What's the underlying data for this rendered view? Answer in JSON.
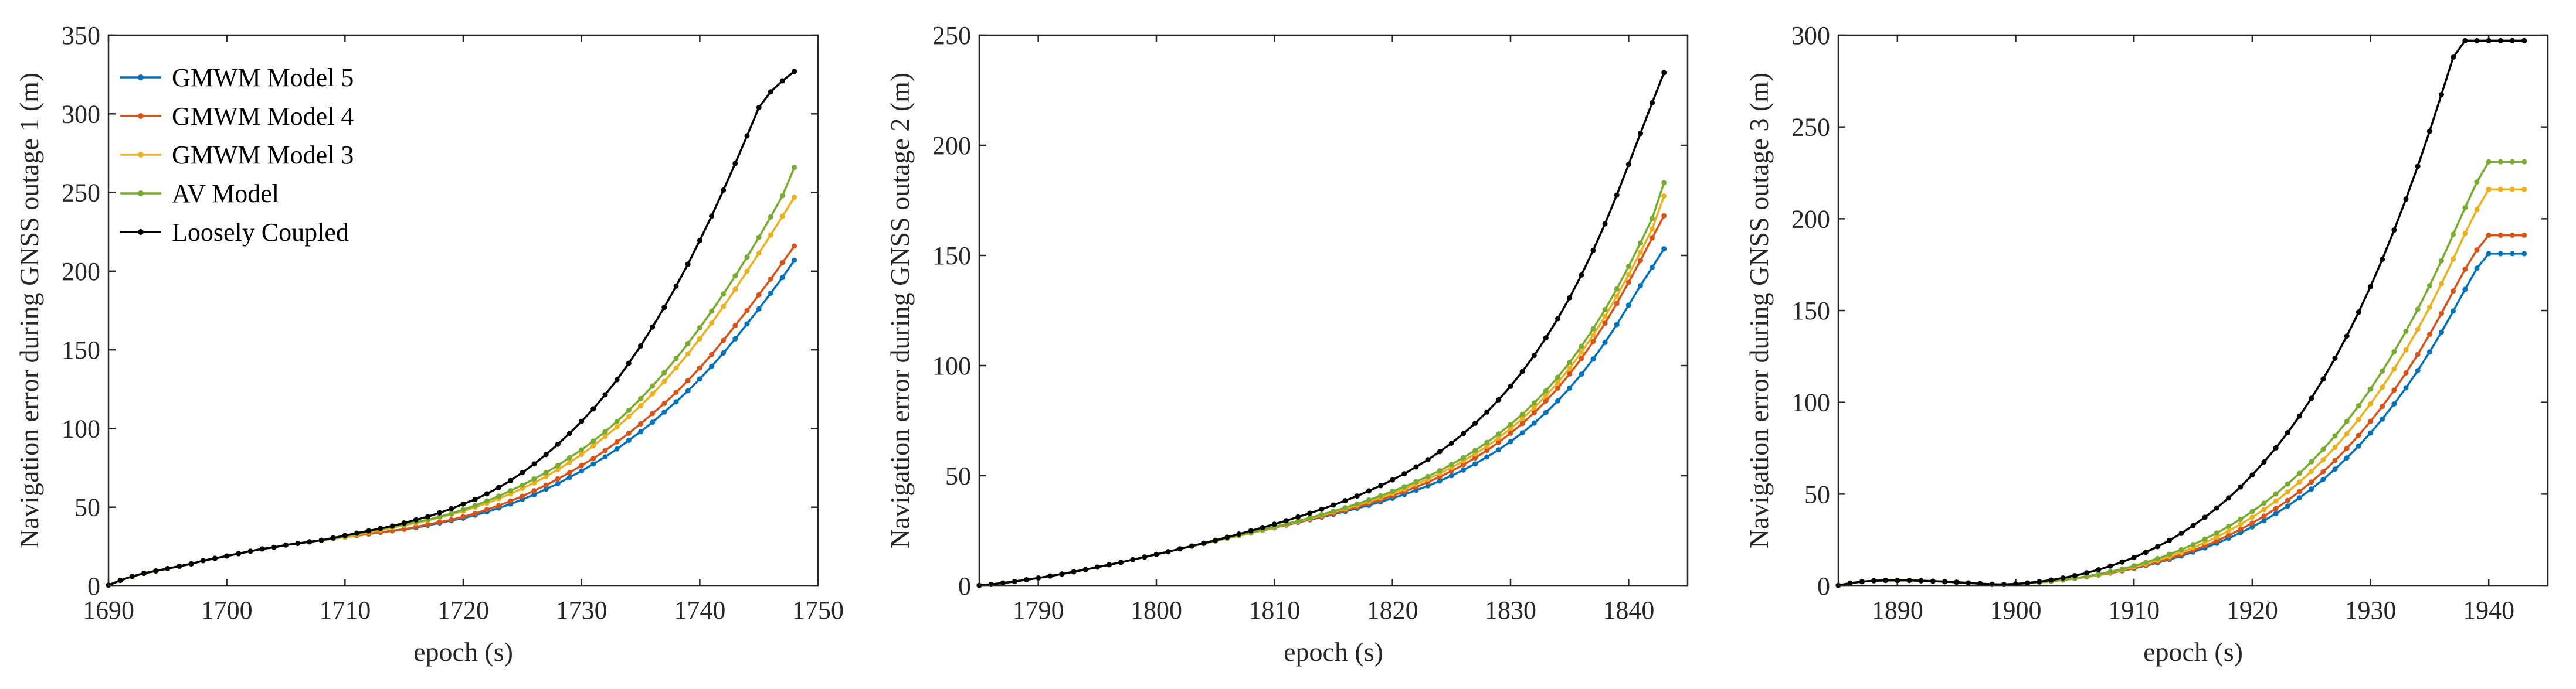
{
  "chart_data": [
    {
      "type": "line",
      "xlabel": "epoch (s)",
      "ylabel": "Navigation error during GNSS outage 1 (m)",
      "xlim": [
        1690,
        1750
      ],
      "ylim": [
        0,
        350
      ],
      "xticks": [
        1690,
        1700,
        1710,
        1720,
        1730,
        1740,
        1750
      ],
      "yticks": [
        0,
        50,
        100,
        150,
        200,
        250,
        300,
        350
      ],
      "grid": false,
      "legend_position": "top-left",
      "x_start": 1690,
      "x_step": 1,
      "series": [
        {
          "name": "GMWM Model 5",
          "color": "#0072BD",
          "values": [
            0.5,
            3.5,
            6,
            8,
            9.5,
            11,
            12.5,
            14,
            16,
            17.5,
            19,
            20.5,
            22,
            23.5,
            24.5,
            26,
            27,
            28,
            29,
            30,
            31,
            32,
            33,
            34,
            35,
            36,
            37,
            38.5,
            40,
            41.5,
            43,
            45,
            47,
            49.5,
            52,
            55,
            58,
            61.5,
            65,
            69,
            73,
            77.5,
            82,
            87,
            92.5,
            98,
            104,
            110.5,
            117,
            124,
            131.5,
            139.5,
            148,
            157,
            166.5,
            176,
            186,
            196,
            207
          ]
        },
        {
          "name": "GMWM Model 4",
          "color": "#D95319",
          "values": [
            0.5,
            3.5,
            6,
            8,
            9.5,
            11,
            12.5,
            14,
            16,
            17.5,
            19,
            20.5,
            22,
            23.5,
            24.5,
            26,
            27,
            28,
            29,
            30,
            31,
            32,
            33,
            34,
            35,
            36,
            37.5,
            39,
            40.5,
            42,
            44,
            46,
            48.5,
            51,
            54,
            57,
            60.5,
            64,
            68,
            72,
            76.5,
            81,
            86,
            91.5,
            97,
            103,
            109.5,
            116,
            123,
            130.5,
            138.5,
            147,
            156,
            165.5,
            175,
            185,
            195,
            205.5,
            216
          ]
        },
        {
          "name": "GMWM Model 3",
          "color": "#EDB120",
          "values": [
            0.5,
            3.5,
            6,
            8,
            9.5,
            11,
            12.5,
            14,
            16,
            17.5,
            19,
            20.5,
            22,
            23.5,
            24.5,
            26,
            27,
            28,
            29,
            30,
            31,
            32.5,
            34,
            35.5,
            37,
            38.5,
            40,
            41.5,
            43.5,
            45.5,
            47.5,
            50,
            52.5,
            55.5,
            58.5,
            62,
            65.5,
            69.5,
            74,
            78.5,
            83.5,
            89,
            95,
            101,
            107.5,
            114.5,
            122,
            130,
            138.5,
            147.5,
            157,
            167,
            177.5,
            188.5,
            200,
            211.5,
            223,
            235,
            247
          ]
        },
        {
          "name": "AV Model",
          "color": "#77AC30",
          "values": [
            0.5,
            3.5,
            6,
            8,
            9.5,
            11,
            12.5,
            14,
            16,
            17.5,
            19,
            20.5,
            22,
            23.5,
            24.5,
            26,
            27,
            28,
            29,
            30,
            31.5,
            33,
            34.5,
            36,
            37.5,
            39,
            40.5,
            42,
            44,
            46,
            48.5,
            51,
            54,
            57,
            60.5,
            64,
            68,
            72,
            76.5,
            81.5,
            86.5,
            92,
            98,
            104.5,
            111.5,
            119,
            127,
            135.5,
            144.5,
            154,
            164,
            174.5,
            185.5,
            197,
            209,
            221.5,
            234.5,
            248,
            266
          ]
        },
        {
          "name": "Loosely Coupled",
          "color": "#000000",
          "values": [
            0.5,
            3.5,
            6,
            8,
            9.5,
            11,
            12.5,
            14,
            16,
            17.5,
            19,
            20.5,
            22,
            23.5,
            24.5,
            26,
            27,
            28,
            29,
            30.5,
            32,
            33.5,
            35,
            36.5,
            38,
            40,
            42,
            44,
            46.5,
            49,
            52,
            55,
            58.5,
            62.5,
            67,
            72,
            77.5,
            83.5,
            90,
            97,
            104.5,
            112.5,
            121.5,
            131,
            141.5,
            152.5,
            164.5,
            177,
            190.5,
            204.5,
            219.5,
            235,
            251.5,
            268.5,
            286,
            304,
            314,
            321,
            327
          ]
        }
      ]
    },
    {
      "type": "line",
      "xlabel": "epoch (s)",
      "ylabel": "Navigation error during GNSS outage 2 (m)",
      "xlim": [
        1785,
        1845
      ],
      "ylim": [
        0,
        250
      ],
      "xticks": [
        1790,
        1800,
        1810,
        1820,
        1830,
        1840
      ],
      "yticks": [
        0,
        50,
        100,
        150,
        200,
        250
      ],
      "grid": false,
      "x_start": 1785,
      "x_step": 1,
      "series": [
        {
          "name": "GMWM Model 5",
          "color": "#0072BD",
          "values": [
            0.2,
            0.7,
            1.3,
            2,
            2.8,
            3.6,
            4.5,
            5.4,
            6.4,
            7.4,
            8.5,
            9.6,
            10.7,
            11.9,
            13.1,
            14.3,
            15.5,
            16.8,
            18,
            19.2,
            20.4,
            21.6,
            22.8,
            24,
            25.2,
            26.4,
            27.6,
            28.8,
            30,
            31.2,
            32.5,
            33.8,
            35.2,
            36.6,
            38.2,
            39.8,
            41.5,
            43.4,
            45.4,
            47.6,
            50,
            52.6,
            55.4,
            58.5,
            61.8,
            65.5,
            69.5,
            73.9,
            78.7,
            84,
            89.8,
            96.1,
            103,
            110.5,
            118.6,
            127.4,
            136.3,
            144.6,
            153
          ]
        },
        {
          "name": "GMWM Model 4",
          "color": "#D95319",
          "values": [
            0.2,
            0.7,
            1.3,
            2,
            2.8,
            3.6,
            4.5,
            5.4,
            6.4,
            7.4,
            8.5,
            9.6,
            10.7,
            11.9,
            13.1,
            14.3,
            15.5,
            16.8,
            18,
            19.2,
            20.4,
            21.6,
            22.8,
            24,
            25.2,
            26.4,
            27.6,
            28.9,
            30.2,
            31.5,
            32.9,
            34.3,
            35.8,
            37.4,
            39.1,
            40.9,
            42.8,
            44.9,
            47.1,
            49.5,
            52.1,
            55,
            58.1,
            61.5,
            65.2,
            69.3,
            73.7,
            78.6,
            83.9,
            89.8,
            96.2,
            103.2,
            110.9,
            119.2,
            128.2,
            137.8,
            147.7,
            158,
            168
          ]
        },
        {
          "name": "GMWM Model 3",
          "color": "#EDB120",
          "values": [
            0.2,
            0.7,
            1.3,
            2,
            2.8,
            3.6,
            4.5,
            5.4,
            6.4,
            7.4,
            8.5,
            9.6,
            10.7,
            11.9,
            13.1,
            14.3,
            15.5,
            16.8,
            18,
            19.2,
            20.4,
            21.6,
            22.8,
            24,
            25.3,
            26.6,
            27.9,
            29.2,
            30.6,
            32,
            33.5,
            35,
            36.6,
            38.3,
            40.1,
            42,
            44,
            46.2,
            48.5,
            51,
            53.7,
            56.7,
            59.9,
            63.4,
            67.2,
            71.4,
            75.9,
            80.9,
            86.3,
            92.3,
            98.8,
            106,
            113.8,
            122.3,
            131.5,
            141.3,
            151.5,
            162,
            177
          ]
        },
        {
          "name": "AV Model",
          "color": "#77AC30",
          "values": [
            0.2,
            0.7,
            1.3,
            2,
            2.8,
            3.6,
            4.5,
            5.4,
            6.4,
            7.4,
            8.5,
            9.6,
            10.7,
            11.9,
            13.1,
            14.3,
            15.5,
            16.8,
            18,
            19.2,
            20.4,
            21.6,
            22.9,
            24.2,
            25.5,
            26.8,
            28.1,
            29.5,
            30.9,
            32.4,
            33.9,
            35.5,
            37.2,
            39,
            40.9,
            42.9,
            45,
            47.3,
            49.7,
            52.3,
            55.1,
            58.2,
            61.5,
            65.1,
            69,
            73.3,
            77.9,
            83,
            88.6,
            94.7,
            101.4,
            108.7,
            116.7,
            125.4,
            134.8,
            145,
            155.7,
            166.8,
            183
          ]
        },
        {
          "name": "Loosely Coupled",
          "color": "#000000",
          "values": [
            0.2,
            0.7,
            1.3,
            2,
            2.8,
            3.6,
            4.5,
            5.4,
            6.4,
            7.4,
            8.5,
            9.6,
            10.7,
            11.9,
            13.1,
            14.3,
            15.5,
            16.8,
            18.1,
            19.4,
            20.7,
            22.1,
            23.5,
            25,
            26.5,
            28,
            29.6,
            31.3,
            33,
            34.8,
            36.7,
            38.7,
            40.8,
            43.1,
            45.5,
            48.1,
            50.9,
            54,
            57.3,
            60.9,
            64.8,
            69.1,
            73.8,
            78.9,
            84.5,
            90.6,
            97.3,
            104.6,
            112.6,
            121.3,
            130.8,
            141.1,
            152.3,
            164.4,
            177.4,
            191.3,
            205.4,
            219.3,
            233
          ]
        }
      ]
    },
    {
      "type": "line",
      "xlabel": "epoch (s)",
      "ylabel": "Navigation error during GNSS outage 3 (m)",
      "xlim": [
        1885,
        1945
      ],
      "ylim": [
        0,
        300
      ],
      "xticks": [
        1890,
        1900,
        1910,
        1920,
        1930,
        1940
      ],
      "yticks": [
        0,
        50,
        100,
        150,
        200,
        250,
        300
      ],
      "grid": false,
      "x_start": 1885,
      "x_step": 1,
      "series": [
        {
          "name": "GMWM Model 5",
          "color": "#0072BD",
          "values": [
            0.3,
            1.5,
            2.3,
            2.8,
            3,
            3,
            3,
            2.8,
            2.6,
            2.3,
            2,
            1.6,
            1.2,
            0.9,
            0.8,
            1,
            1.4,
            1.9,
            2.5,
            3.2,
            4,
            4.9,
            5.9,
            7,
            8.2,
            9.5,
            11,
            12.6,
            14.4,
            16.3,
            18.4,
            20.7,
            23.2,
            25.9,
            28.9,
            32.1,
            35.6,
            39.4,
            43.5,
            48,
            52.8,
            58,
            63.6,
            69.7,
            76.2,
            83.3,
            90.9,
            99.1,
            107.9,
            117.3,
            127.4,
            138.2,
            149.7,
            161.5,
            173,
            181,
            181,
            181,
            181
          ]
        },
        {
          "name": "GMWM Model 4",
          "color": "#D95319",
          "values": [
            0.3,
            1.5,
            2.3,
            2.8,
            3,
            3,
            3,
            2.8,
            2.6,
            2.3,
            2,
            1.6,
            1.2,
            0.9,
            0.8,
            1,
            1.4,
            1.9,
            2.5,
            3.2,
            4,
            4.9,
            5.9,
            7,
            8.3,
            9.7,
            11.3,
            13,
            14.9,
            17,
            19.3,
            21.8,
            24.5,
            27.5,
            30.7,
            34.2,
            38,
            42.1,
            46.6,
            51.4,
            56.6,
            62.2,
            68.3,
            74.9,
            82,
            89.6,
            97.8,
            106.6,
            116,
            126.1,
            136.9,
            148.4,
            160.6,
            172.5,
            183,
            191,
            191,
            191,
            191
          ]
        },
        {
          "name": "GMWM Model 3",
          "color": "#EDB120",
          "values": [
            0.3,
            1.5,
            2.3,
            2.8,
            3,
            3,
            3,
            2.8,
            2.6,
            2.3,
            2,
            1.6,
            1.2,
            0.9,
            0.8,
            1,
            1.4,
            1.9,
            2.5,
            3.2,
            4,
            5,
            6.1,
            7.3,
            8.7,
            10.3,
            12,
            13.9,
            16,
            18.3,
            20.8,
            23.6,
            26.6,
            29.9,
            33.5,
            37.4,
            41.6,
            46.2,
            51.2,
            56.6,
            62.4,
            68.7,
            75.5,
            82.8,
            90.7,
            99.2,
            108.3,
            118.1,
            128.6,
            139.8,
            151.8,
            164.6,
            178,
            192,
            205,
            216,
            216,
            216,
            216
          ]
        },
        {
          "name": "AV Model",
          "color": "#77AC30",
          "values": [
            0.3,
            1.5,
            2.3,
            2.8,
            3,
            3,
            3,
            2.8,
            2.6,
            2.3,
            2,
            1.6,
            1.2,
            0.9,
            0.8,
            1,
            1.4,
            1.9,
            2.5,
            3.3,
            4.2,
            5.2,
            6.4,
            7.7,
            9.2,
            10.9,
            12.8,
            14.9,
            17.2,
            19.7,
            22.5,
            25.5,
            28.8,
            32.4,
            36.3,
            40.5,
            45.1,
            50.1,
            55.5,
            61.3,
            67.6,
            74.4,
            81.7,
            89.6,
            98.1,
            107.2,
            117,
            127.5,
            138.7,
            150.7,
            163.5,
            177.1,
            191.5,
            206,
            220,
            231,
            231,
            231,
            231
          ]
        },
        {
          "name": "Loosely Coupled",
          "color": "#000000",
          "values": [
            0.3,
            1.5,
            2.3,
            2.8,
            3,
            3,
            3,
            2.8,
            2.6,
            2.3,
            2,
            1.6,
            1.2,
            0.9,
            0.8,
            1.1,
            1.6,
            2.3,
            3.2,
            4.3,
            5.6,
            7.1,
            8.8,
            10.8,
            13,
            15.5,
            18.3,
            21.4,
            24.8,
            28.6,
            32.8,
            37.4,
            42.4,
            47.9,
            53.9,
            60.4,
            67.5,
            75.2,
            83.5,
            92.5,
            102.2,
            112.7,
            124,
            136.1,
            149.1,
            163,
            177.9,
            193.8,
            210.7,
            228.6,
            247.6,
            267.6,
            288,
            297,
            297,
            297,
            297,
            297,
            297
          ]
        }
      ]
    }
  ]
}
